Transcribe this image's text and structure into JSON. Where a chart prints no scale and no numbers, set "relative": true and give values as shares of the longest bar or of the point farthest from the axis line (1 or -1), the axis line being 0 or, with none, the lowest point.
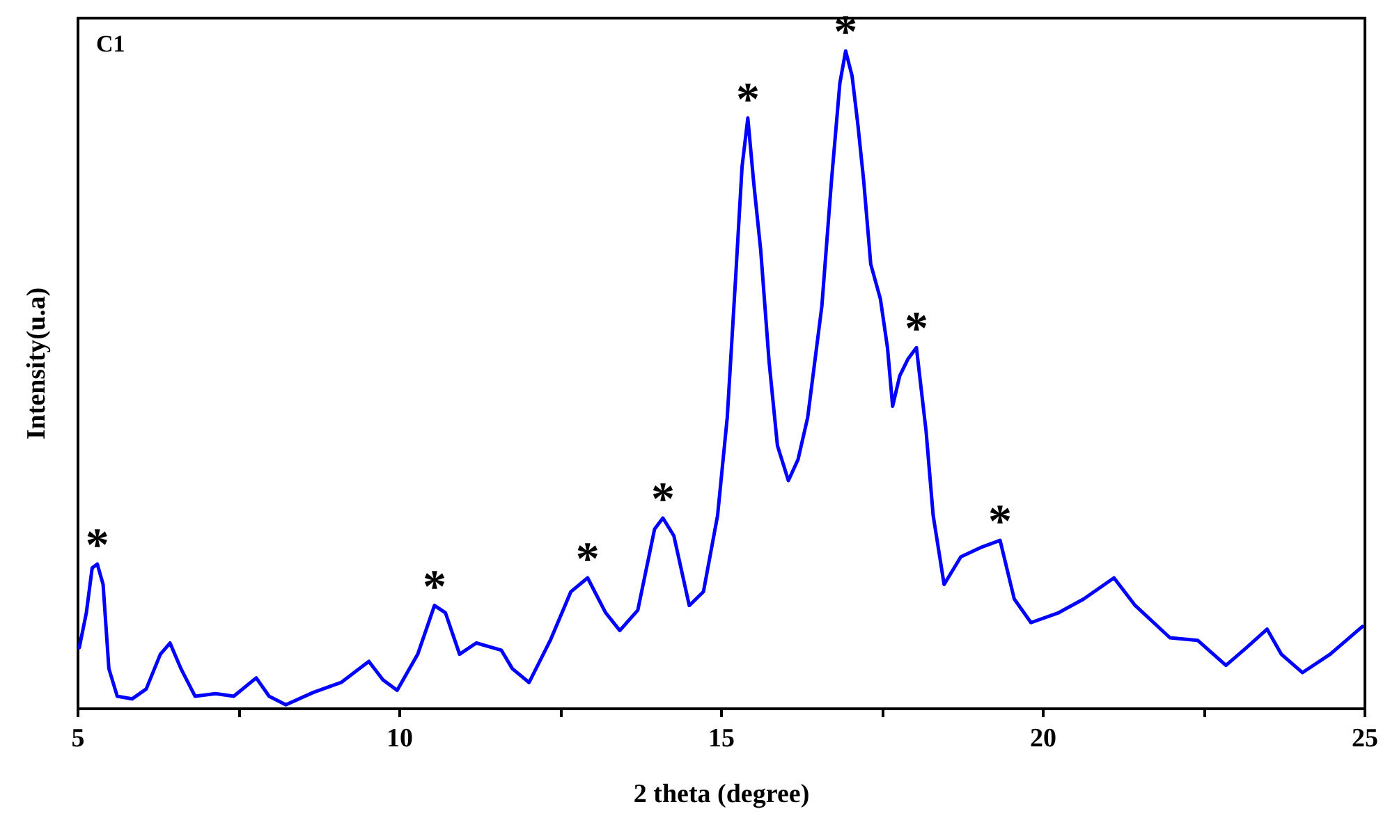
{
  "chart_data": {
    "type": "line",
    "title": "C1",
    "xlabel": "2 theta (degree)",
    "ylabel": "Intensity(u.a)",
    "relative": true,
    "xlim": [
      5,
      25
    ],
    "xticks": [
      5,
      {
        "value": 7.5,
        "label": null
      },
      10,
      {
        "value": 12.5,
        "label": null
      },
      15,
      {
        "value": 17.5,
        "label": null
      },
      20,
      {
        "value": 22.5,
        "label": null
      },
      25
    ],
    "marker": "none",
    "line_style": "solid",
    "grid": false,
    "series": [
      {
        "color": "#0000ff",
        "x": [
          5.02,
          5.13,
          5.22,
          5.3,
          5.39,
          5.48,
          5.61,
          5.84,
          6.06,
          6.28,
          6.43,
          6.6,
          6.82,
          7.14,
          7.42,
          7.77,
          7.97,
          8.23,
          8.66,
          9.09,
          9.52,
          9.74,
          9.96,
          10.28,
          10.54,
          10.71,
          10.93,
          11.19,
          11.58,
          11.75,
          12.01,
          12.34,
          12.66,
          12.92,
          13.2,
          13.42,
          13.7,
          13.96,
          14.09,
          14.26,
          14.5,
          14.72,
          14.94,
          15.09,
          15.22,
          15.32,
          15.41,
          15.5,
          15.61,
          15.74,
          15.87,
          16.04,
          16.19,
          16.34,
          16.56,
          16.71,
          16.84,
          16.93,
          17.03,
          17.12,
          17.21,
          17.32,
          17.47,
          17.58,
          17.66,
          17.77,
          17.9,
          18.03,
          18.18,
          18.29,
          18.46,
          18.72,
          19.05,
          19.33,
          19.55,
          19.81,
          20.24,
          20.63,
          21.1,
          21.43,
          21.97,
          22.4,
          22.84,
          23.16,
          23.48,
          23.7,
          24.03,
          24.46,
          24.96
        ],
        "values": [
          0.093,
          0.146,
          0.214,
          0.22,
          0.189,
          0.061,
          0.019,
          0.015,
          0.03,
          0.083,
          0.1,
          0.061,
          0.019,
          0.023,
          0.019,
          0.047,
          0.019,
          0.006,
          0.025,
          0.04,
          0.072,
          0.044,
          0.028,
          0.083,
          0.157,
          0.146,
          0.083,
          0.1,
          0.089,
          0.061,
          0.04,
          0.104,
          0.178,
          0.199,
          0.146,
          0.119,
          0.15,
          0.273,
          0.29,
          0.263,
          0.157,
          0.178,
          0.294,
          0.443,
          0.655,
          0.824,
          0.898,
          0.801,
          0.697,
          0.528,
          0.4,
          0.347,
          0.379,
          0.443,
          0.612,
          0.803,
          0.951,
          1,
          0.962,
          0.888,
          0.803,
          0.676,
          0.623,
          0.549,
          0.46,
          0.506,
          0.532,
          0.549,
          0.422,
          0.294,
          0.189,
          0.231,
          0.246,
          0.256,
          0.167,
          0.131,
          0.146,
          0.167,
          0.199,
          0.157,
          0.108,
          0.104,
          0.066,
          0.093,
          0.121,
          0.083,
          0.055,
          0.083,
          0.125
        ]
      }
    ],
    "annotations": [
      {
        "text": "*",
        "x": 5.3,
        "y": 0.22
      },
      {
        "text": "*",
        "x": 10.54,
        "y": 0.157
      },
      {
        "text": "*",
        "x": 12.92,
        "y": 0.199
      },
      {
        "text": "*",
        "x": 14.09,
        "y": 0.29
      },
      {
        "text": "*",
        "x": 15.41,
        "y": 0.898
      },
      {
        "text": "*",
        "x": 16.93,
        "y": 1
      },
      {
        "text": "*",
        "x": 18.03,
        "y": 0.549
      },
      {
        "text": "*",
        "x": 19.33,
        "y": 0.256
      }
    ]
  }
}
